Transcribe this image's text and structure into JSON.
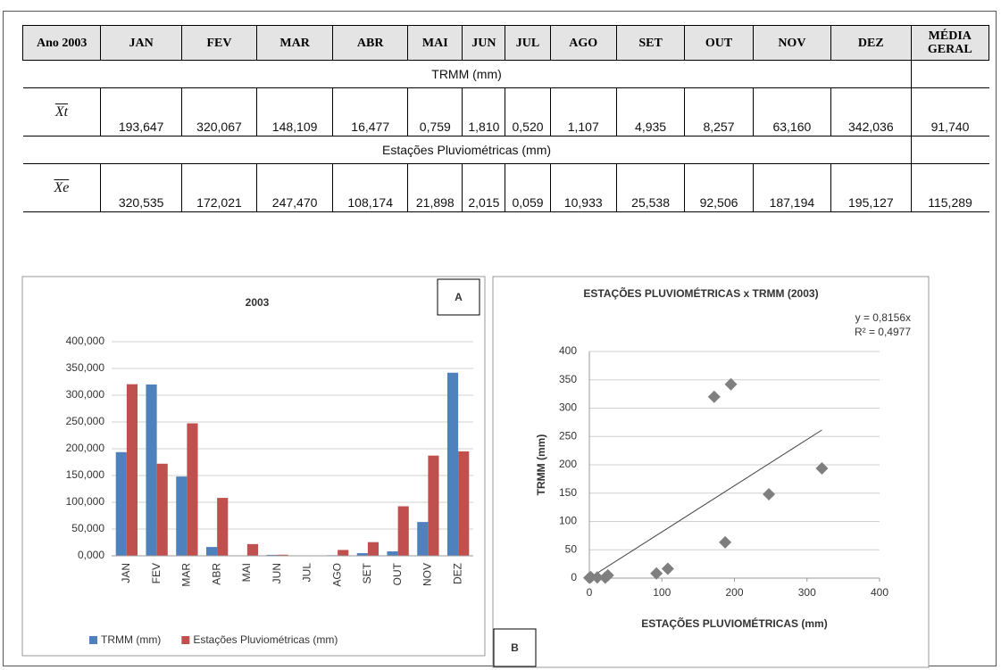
{
  "table": {
    "header": [
      "Ano 2003",
      "JAN",
      "FEV",
      "MAR",
      "ABR",
      "MAI",
      "JUN",
      "JUL",
      "AGO",
      "SET",
      "OUT",
      "NOV",
      "DEZ",
      "MÉDIA GERAL"
    ],
    "rows": [
      {
        "section": "TRMM (mm)",
        "label": "Xt",
        "values": [
          "193,647",
          "320,067",
          "148,109",
          "16,477",
          "0,759",
          "1,810",
          "0,520",
          "1,107",
          "4,935",
          "8,257",
          "63,160",
          "342,036",
          "91,740"
        ]
      },
      {
        "section": "Estações Pluviométricas (mm)",
        "label": "Xe",
        "values": [
          "320,535",
          "172,021",
          "247,470",
          "108,174",
          "21,898",
          "2,015",
          "0,059",
          "10,933",
          "25,538",
          "92,506",
          "187,194",
          "195,127",
          "115,289"
        ]
      }
    ]
  },
  "chart_data": [
    {
      "type": "bar",
      "title": "2003",
      "label": "A",
      "categories": [
        "JAN",
        "FEV",
        "MAR",
        "ABR",
        "MAI",
        "JUN",
        "JUL",
        "AGO",
        "SET",
        "OUT",
        "NOV",
        "DEZ"
      ],
      "series": [
        {
          "name": "TRMM (mm)",
          "color": "#4f81bd",
          "values": [
            193.647,
            320.067,
            148.109,
            16.477,
            0.759,
            1.81,
            0.52,
            1.107,
            4.935,
            8.257,
            63.16,
            342.036
          ]
        },
        {
          "name": "Estações Pluviométricas (mm)",
          "color": "#c0504d",
          "values": [
            320.535,
            172.021,
            247.47,
            108.174,
            21.898,
            2.015,
            0.059,
            10.933,
            25.538,
            92.506,
            187.194,
            195.127
          ]
        }
      ],
      "ylim": [
        0,
        400
      ],
      "yticks": [
        {
          "value": 0,
          "label": "0,000"
        },
        {
          "value": 50,
          "label": "50,000"
        },
        {
          "value": 100,
          "label": "100,000"
        },
        {
          "value": 150,
          "label": "150,000"
        },
        {
          "value": 200,
          "label": "200,000"
        },
        {
          "value": 250,
          "label": "250,000"
        },
        {
          "value": 300,
          "label": "300,000"
        },
        {
          "value": 350,
          "label": "350,000"
        },
        {
          "value": 400,
          "label": "400,000"
        }
      ],
      "grid": true,
      "legend": "bottom"
    },
    {
      "type": "scatter",
      "title": "ESTAÇÕES  PLUVIOMÉTRICAS  x TRMM  (2003)",
      "label": "B",
      "xlabel": "ESTAÇÕES  PLUVIOMÉTRICAS (mm)",
      "ylabel": "TRMM (mm)",
      "x": [
        320.535,
        172.021,
        247.47,
        108.174,
        21.898,
        2.015,
        0.059,
        10.933,
        25.538,
        92.506,
        187.194,
        195.127
      ],
      "values": [
        193.647,
        320.067,
        148.109,
        16.477,
        0.759,
        1.81,
        0.52,
        1.107,
        4.935,
        8.257,
        63.16,
        342.036
      ],
      "color": "#7f7f7f",
      "xlim": [
        0,
        400
      ],
      "xticks": [
        0,
        100,
        200,
        300,
        400
      ],
      "ylim": [
        0,
        400
      ],
      "yticks": [
        0,
        50,
        100,
        150,
        200,
        250,
        300,
        350,
        400
      ],
      "grid": true,
      "trendline": {
        "slope": 0.8156,
        "label": "y = 0,8156x",
        "r2": 0.4977,
        "r2_label": "R² = 0,4977"
      }
    }
  ]
}
